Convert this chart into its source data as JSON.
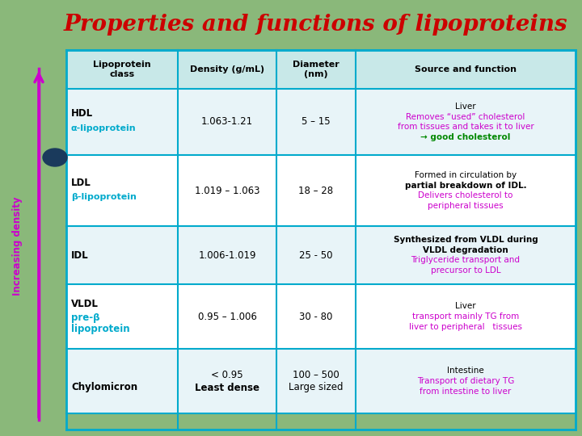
{
  "title": "Properties and functions of lipoproteins",
  "title_color": "#cc0000",
  "bg_color": "#8ab87a",
  "header_bg": "#c8e8e8",
  "cell_bg_light": "#e8f4f8",
  "cell_bg_white": "#ffffff",
  "border_color": "#00aacc",
  "arrow_color": "#cc00cc",
  "arrow_label": "Increasing density",
  "col_headers": [
    "Lipoprotein\nclass",
    "Density (g/mL)",
    "Diameter\n(nm)",
    "Source and function"
  ],
  "rows": [
    {
      "class_bold": "HDL",
      "class_colored": "α-lipoprotein",
      "class_color": "#00aacc",
      "density": "1.063-1.21",
      "diameter": "5 – 15",
      "source_lines": [
        {
          "text": "Liver",
          "color": "#000000",
          "bold": false
        },
        {
          "text": "Removes “used” cholesterol",
          "color": "#cc00cc",
          "bold": false
        },
        {
          "text": "from tissues and takes it to liver",
          "color": "#cc00cc",
          "bold": false
        },
        {
          "text": "→ good cholesterol",
          "color": "#008800",
          "bold": true
        }
      ]
    },
    {
      "class_bold": "LDL",
      "class_colored": "β-lipoprotein",
      "class_color": "#00aacc",
      "density": "1.019 – 1.063",
      "diameter": "18 – 28",
      "source_lines": [
        {
          "text": "Formed in circulation by",
          "color": "#000000",
          "bold": false
        },
        {
          "text": "partial breakdown of IDL.",
          "color": "#000000",
          "bold": true
        },
        {
          "text": "Delivers cholesterol to",
          "color": "#cc00cc",
          "bold": false
        },
        {
          "text": "peripheral tissues",
          "color": "#cc00cc",
          "bold": false
        }
      ]
    },
    {
      "class_bold": "IDL",
      "class_colored": "",
      "class_color": "#000000",
      "density": "1.006-1.019",
      "diameter": "25 - 50",
      "source_lines": [
        {
          "text": "Synthesized from VLDL during",
          "color": "#000000",
          "bold": true
        },
        {
          "text": "VLDL degradation",
          "color": "#000000",
          "bold": true
        },
        {
          "text": "Triglyceride transport and",
          "color": "#cc00cc",
          "bold": false
        },
        {
          "text": "precursor to LDL",
          "color": "#cc00cc",
          "bold": false
        }
      ]
    },
    {
      "class_bold": "VLDL",
      "class_colored": "pre-β\nlipoprotein",
      "class_color": "#00aacc",
      "density": "0.95 – 1.006",
      "diameter": "30 - 80",
      "source_lines": [
        {
          "text": "Liver",
          "color": "#000000",
          "bold": false
        },
        {
          "text": "transport mainly TG from",
          "color": "#cc00cc",
          "bold": false
        },
        {
          "text": "liver to peripheral   tissues",
          "color": "#cc00cc",
          "bold": false
        }
      ]
    },
    {
      "class_bold": "Chylomicron",
      "class_colored": "",
      "class_color": "#000000",
      "density_lines": [
        "< 0.95",
        "Least dense"
      ],
      "diameter_lines": [
        "100 – 500",
        "Large sized"
      ],
      "source_lines": [
        {
          "text": "Intestine",
          "color": "#000000",
          "bold": false
        },
        {
          "text": "Transport of dietary TG",
          "color": "#cc00cc",
          "bold": false
        },
        {
          "text": "from intestine to liver",
          "color": "#cc00cc",
          "bold": false
        }
      ]
    }
  ]
}
